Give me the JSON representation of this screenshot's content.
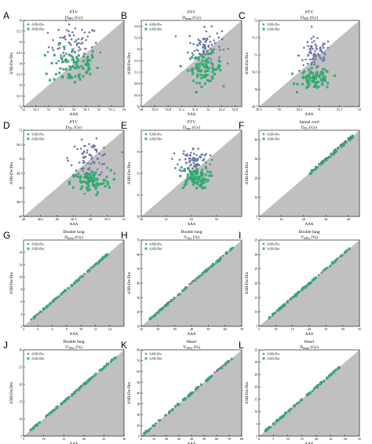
{
  "colors": {
    "background_triangle": "#c0c0c0",
    "dw": "#6f7aa8",
    "dm": "#2ec27e",
    "dm_edge": "#1e7a4d"
  },
  "legend": [
    "AXB-Dw",
    "AXB-Dm"
  ],
  "chart_data": [
    {
      "type": "scatter",
      "panel": "A",
      "title": "PTV",
      "subtitle": "D98% (Gy)",
      "xlabel": "AAA",
      "ylabel": "AXB-Dw/Dm",
      "xlim": [
        52.0,
        56.0
      ],
      "ylim": [
        52.0,
        56.0
      ],
      "ticks": [
        52.0,
        52.5,
        53.0,
        53.5,
        54.0,
        54.5,
        55.0,
        55.5,
        56.0
      ],
      "series": [
        {
          "name": "AXB-Dw",
          "cx": 54.0,
          "cy": 54.8,
          "sx": 0.5,
          "sy": 0.5,
          "n": 80
        },
        {
          "name": "AXB-Dm",
          "cx": 54.0,
          "cy": 53.9,
          "sx": 0.5,
          "sy": 0.45,
          "n": 80
        }
      ]
    },
    {
      "type": "scatter",
      "panel": "B",
      "title": "PTV",
      "subtitle": "Dmean (Gy)",
      "xlabel": "AAA",
      "ylabel": "AXB-Dw/Dm",
      "xlim": [
        50.0,
        53.0
      ],
      "ylim": [
        50.0,
        53.0
      ],
      "ticks": [
        50.0,
        50.4,
        50.8,
        51.2,
        51.6,
        52.0,
        52.4,
        52.8
      ],
      "series": [
        {
          "name": "AXB-Dw",
          "cx": 51.9,
          "cy": 52.1,
          "sx": 0.25,
          "sy": 0.3,
          "n": 80
        },
        {
          "name": "AXB-Dm",
          "cx": 51.9,
          "cy": 51.35,
          "sx": 0.25,
          "sy": 0.25,
          "n": 80
        }
      ]
    },
    {
      "type": "scatter",
      "panel": "C",
      "title": "PTV",
      "subtitle": "D50% (Gy)",
      "xlabel": "AAA",
      "ylabel": "AXB-Dw/Dm",
      "xlim": [
        49.5,
        52.0
      ],
      "ylim": [
        49.5,
        52.0
      ],
      "ticks": [
        49.5,
        50.0,
        50.5,
        51.0,
        51.5,
        52.0
      ],
      "series": [
        {
          "name": "AXB-Dw",
          "cx": 50.9,
          "cy": 51.0,
          "sx": 0.2,
          "sy": 0.25,
          "n": 80
        },
        {
          "name": "AXB-Dm",
          "cx": 50.9,
          "cy": 50.3,
          "sx": 0.2,
          "sy": 0.15,
          "n": 80
        }
      ]
    },
    {
      "type": "scatter",
      "panel": "D",
      "title": "PTV",
      "subtitle": "D2% (Gy)",
      "xlabel": "AAA",
      "ylabel": "AXB-Dw/Dm",
      "xlim": [
        48.0,
        51.0
      ],
      "ylim": [
        48.0,
        51.0
      ],
      "ticks": [
        48.0,
        48.5,
        49.0,
        49.5,
        50.0,
        50.5,
        51.0
      ],
      "series": [
        {
          "name": "AXB-Dw",
          "cx": 50.0,
          "cy": 50.0,
          "sx": 0.3,
          "sy": 0.3,
          "n": 80
        },
        {
          "name": "AXB-Dm",
          "cx": 50.0,
          "cy": 49.2,
          "sx": 0.3,
          "sy": 0.2,
          "n": 80
        }
      ]
    },
    {
      "type": "scatter",
      "panel": "E",
      "title": "PTV",
      "subtitle": "Dmax (Gy)",
      "xlabel": "AAA",
      "ylabel": "AXB-Dw/Dm",
      "xlim": [
        50.0,
        54.0
      ],
      "ylim": [
        50.0,
        54.0
      ],
      "ticks": [
        50,
        51,
        52,
        53
      ],
      "series": [
        {
          "name": "AXB-Dw",
          "cx": 52.1,
          "cy": 52.6,
          "sx": 0.3,
          "sy": 0.3,
          "n": 80
        },
        {
          "name": "AXB-Dm",
          "cx": 52.1,
          "cy": 51.8,
          "sx": 0.3,
          "sy": 0.25,
          "n": 80
        }
      ]
    },
    {
      "type": "scatter",
      "panel": "F",
      "title": "Spinal cord",
      "subtitle": "D2% (Gy)",
      "xlabel": "AAA",
      "ylabel": "AXB-Dw/Dm",
      "xlim": [
        0,
        45
      ],
      "ylim": [
        0,
        45
      ],
      "ticks": [
        0,
        10,
        20,
        30,
        40
      ],
      "series": [
        {
          "name": "AXB-Dw",
          "diag": true,
          "xmin": 22,
          "xmax": 42,
          "off": 0.5,
          "n": 40
        },
        {
          "name": "AXB-Dm",
          "diag": true,
          "xmin": 22,
          "xmax": 42,
          "off": -0.5,
          "n": 40
        }
      ]
    },
    {
      "type": "scatter",
      "panel": "G",
      "title": "Double lung",
      "subtitle": "Dmean (Gy)",
      "xlabel": "AAA",
      "ylabel": "AXB-Dw/Dm",
      "xlim": [
        2,
        16
      ],
      "ylim": [
        2,
        16
      ],
      "ticks": [
        2,
        4,
        6,
        8,
        10,
        12,
        14
      ],
      "series": [
        {
          "name": "AXB-Dw",
          "diag": true,
          "xmin": 3,
          "xmax": 14,
          "off": 0.05,
          "n": 50
        },
        {
          "name": "AXB-Dm",
          "diag": true,
          "xmin": 3,
          "xmax": 14,
          "off": -0.05,
          "n": 50
        }
      ]
    },
    {
      "type": "scatter",
      "panel": "H",
      "title": "Double lung",
      "subtitle": "V5Gy (%)",
      "xlabel": "AAA",
      "ylabel": "AXB-Dw/Dm",
      "xlim": [
        10,
        70
      ],
      "ylim": [
        10,
        70
      ],
      "ticks": [
        10,
        20,
        30,
        40,
        50,
        60,
        70
      ],
      "series": [
        {
          "name": "AXB-Dw",
          "diag": true,
          "xmin": 15,
          "xmax": 65,
          "off": 0.2,
          "n": 50
        },
        {
          "name": "AXB-Dm",
          "diag": true,
          "xmin": 15,
          "xmax": 65,
          "off": -0.2,
          "n": 50
        }
      ]
    },
    {
      "type": "scatter",
      "panel": "I",
      "title": "Double lung",
      "subtitle": "V20Gy (%)",
      "xlabel": "AAA",
      "ylabel": "AXB-Dw/Dm",
      "xlim": [
        5,
        35
      ],
      "ylim": [
        5,
        35
      ],
      "ticks": [
        5,
        10,
        15,
        20,
        25,
        30,
        35
      ],
      "series": [
        {
          "name": "AXB-Dw",
          "diag": true,
          "xmin": 8,
          "xmax": 32,
          "off": 0.1,
          "n": 50
        },
        {
          "name": "AXB-Dm",
          "diag": true,
          "xmin": 8,
          "xmax": 32,
          "off": -0.1,
          "n": 50
        }
      ]
    },
    {
      "type": "scatter",
      "panel": "J",
      "title": "Double lung",
      "subtitle": "V30Gy (%)",
      "xlabel": "AAA",
      "ylabel": "AXB-Dw/Dm",
      "xlim": [
        5,
        30
      ],
      "ylim": [
        5,
        30
      ],
      "ticks": [
        5,
        10,
        15,
        20,
        25,
        30
      ],
      "series": [
        {
          "name": "AXB-Dw",
          "diag": true,
          "xmin": 6,
          "xmax": 28,
          "off": 0.1,
          "n": 50
        },
        {
          "name": "AXB-Dm",
          "diag": true,
          "xmin": 6,
          "xmax": 28,
          "off": -0.1,
          "n": 50
        }
      ]
    },
    {
      "type": "scatter",
      "panel": "K",
      "title": "Heart",
      "subtitle": "V30Gy (%)",
      "xlabel": "AAA",
      "ylabel": "AXB-Dw/Dm",
      "xlim": [
        0,
        80
      ],
      "ylim": [
        0,
        80
      ],
      "ticks": [
        0,
        10,
        20,
        30,
        40,
        50,
        60,
        70,
        80
      ],
      "series": [
        {
          "name": "AXB-Dw",
          "diag": true,
          "xmin": 2,
          "xmax": 72,
          "off": 0.3,
          "n": 50
        },
        {
          "name": "AXB-Dm",
          "diag": true,
          "xmin": 2,
          "xmax": 72,
          "off": -0.3,
          "n": 50
        }
      ]
    },
    {
      "type": "scatter",
      "panel": "L",
      "title": "Heart",
      "subtitle": "Dmean (Gy)",
      "xlabel": "AAA",
      "ylabel": "AXB-Dw/Dm",
      "xlim": [
        0,
        35
      ],
      "ylim": [
        0,
        35
      ],
      "ticks": [
        0,
        5,
        10,
        15,
        20,
        25,
        30,
        35
      ],
      "series": [
        {
          "name": "AXB-Dw",
          "diag": true,
          "xmin": 2,
          "xmax": 28,
          "off": 0.1,
          "n": 50
        },
        {
          "name": "AXB-Dm",
          "diag": true,
          "xmin": 2,
          "xmax": 28,
          "off": -0.1,
          "n": 50
        }
      ]
    }
  ]
}
